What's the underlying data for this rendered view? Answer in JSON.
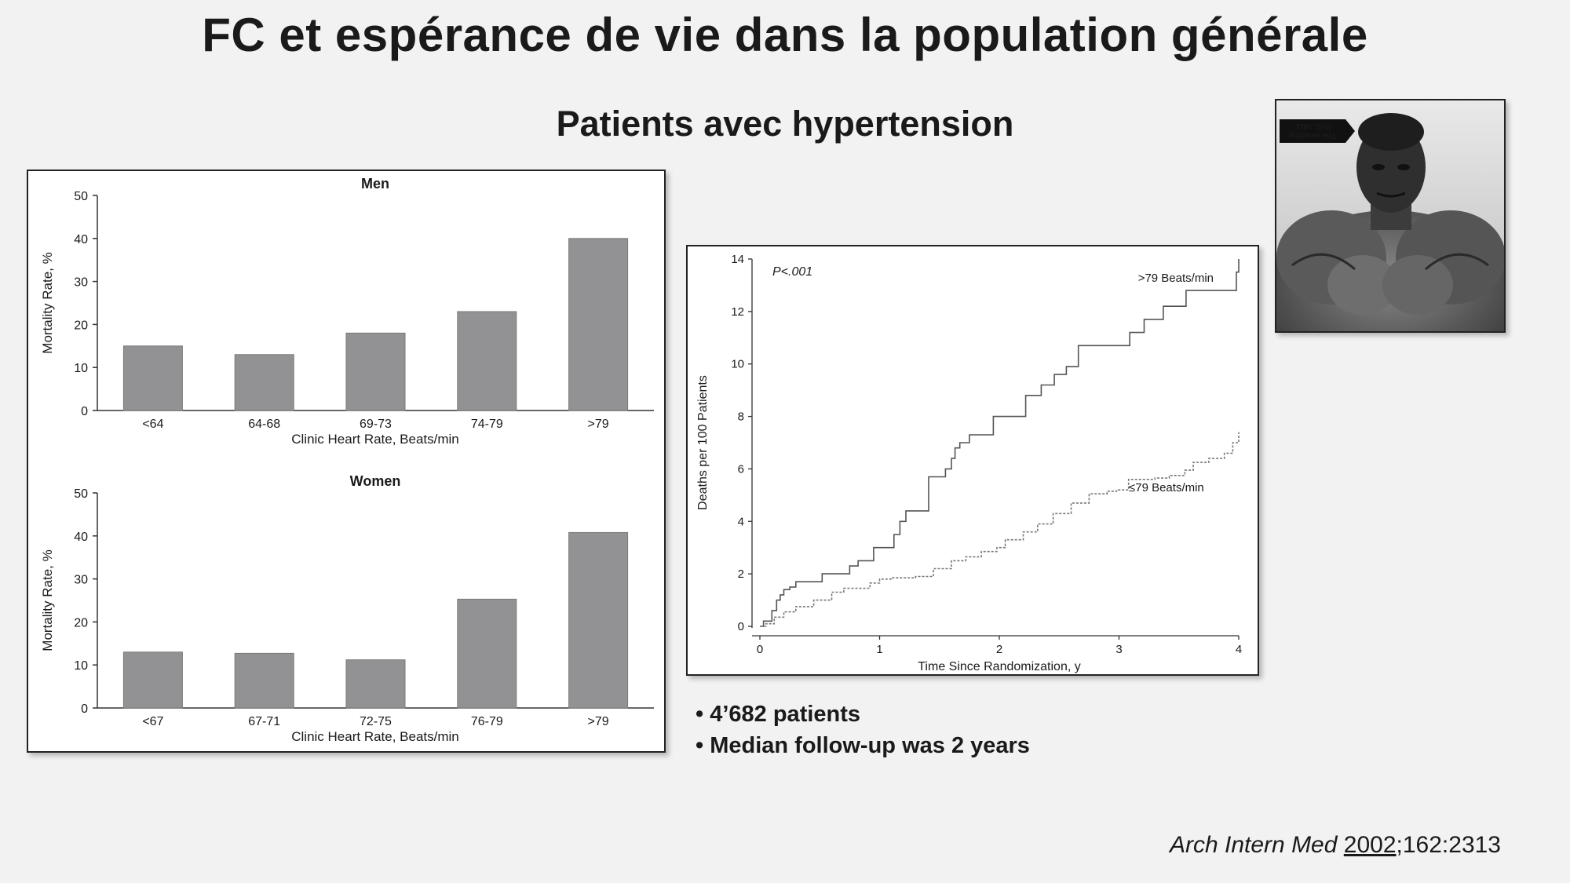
{
  "slide": {
    "title": "FC et espérance de vie dans la population générale",
    "subtitle": "Patients avec hypertension",
    "bullets": [
      "4’682 patients",
      "Median follow-up was 2 years"
    ],
    "citation": {
      "journal": "Arch Intern Med",
      "year": "2002",
      "rest": ";162:2313"
    },
    "photo": {
      "caption_line1": "The amazing",
      "caption_line2": "PHIL HILL"
    }
  },
  "colors": {
    "bar_fill": "#929294",
    "axis": "#333333",
    "background": "#f2f2f2"
  },
  "chart_data": [
    {
      "type": "bar",
      "title": "Men",
      "categories": [
        "<64",
        "64-68",
        "69-73",
        "74-79",
        ">79"
      ],
      "values": [
        15,
        13,
        18,
        23,
        40
      ],
      "xlabel": "Clinic Heart Rate, Beats/min",
      "ylabel": "Mortality Rate, %",
      "ylim": [
        0,
        50
      ],
      "yticks": [
        0,
        10,
        20,
        30,
        40,
        50
      ]
    },
    {
      "type": "bar",
      "title": "Women",
      "categories": [
        "<67",
        "67-71",
        "72-75",
        "76-79",
        ">79"
      ],
      "values": [
        13,
        12.7,
        11.2,
        25.3,
        40.8
      ],
      "xlabel": "Clinic Heart Rate, Beats/min",
      "ylabel": "Mortality Rate, %",
      "ylim": [
        0,
        50
      ],
      "yticks": [
        0,
        10,
        20,
        30,
        40,
        50
      ]
    },
    {
      "type": "line",
      "step": true,
      "annotation": "P<.001",
      "xlabel": "Time Since Randomization, y",
      "ylabel": "Deaths per 100 Patients",
      "xlim": [
        0,
        4
      ],
      "ylim": [
        0,
        14
      ],
      "xticks": [
        0,
        1,
        2,
        3,
        4
      ],
      "yticks": [
        0,
        2,
        4,
        6,
        8,
        10,
        12,
        14
      ],
      "series": [
        {
          "name": ">79 Beats/min",
          "style": "solid",
          "x": [
            0,
            0.03,
            0.1,
            0.14,
            0.17,
            0.2,
            0.25,
            0.3,
            0.4,
            0.52,
            0.62,
            0.75,
            0.82,
            0.95,
            1.12,
            1.17,
            1.22,
            1.41,
            1.55,
            1.6,
            1.63,
            1.67,
            1.75,
            1.95,
            2.22,
            2.35,
            2.46,
            2.56,
            2.66,
            2.73,
            2.95,
            3.09,
            3.21,
            3.37,
            3.56,
            3.78,
            3.98,
            4.0
          ],
          "y": [
            0,
            0.2,
            0.6,
            1.0,
            1.2,
            1.4,
            1.5,
            1.7,
            1.7,
            2.0,
            2.0,
            2.3,
            2.5,
            3.0,
            3.5,
            4.0,
            4.4,
            5.7,
            6.0,
            6.4,
            6.8,
            7.0,
            7.3,
            8.0,
            8.8,
            9.2,
            9.6,
            9.9,
            10.7,
            10.7,
            10.7,
            11.2,
            11.7,
            12.2,
            12.8,
            12.8,
            13.5,
            14.0
          ]
        },
        {
          "name": "≤79 Beats/min",
          "style": "dashed",
          "x": [
            0,
            0.05,
            0.12,
            0.2,
            0.3,
            0.45,
            0.6,
            0.7,
            0.8,
            0.92,
            1.0,
            1.1,
            1.3,
            1.45,
            1.6,
            1.72,
            1.85,
            1.98,
            2.05,
            2.2,
            2.32,
            2.45,
            2.6,
            2.75,
            2.9,
            2.98,
            3.08,
            3.3,
            3.42,
            3.55,
            3.62,
            3.75,
            3.88,
            3.95,
            4.0
          ],
          "y": [
            0,
            0.1,
            0.35,
            0.55,
            0.75,
            1.0,
            1.3,
            1.45,
            1.45,
            1.65,
            1.8,
            1.85,
            1.9,
            2.2,
            2.5,
            2.65,
            2.85,
            3.0,
            3.3,
            3.6,
            3.9,
            4.3,
            4.7,
            5.05,
            5.15,
            5.2,
            5.6,
            5.65,
            5.75,
            5.95,
            6.25,
            6.4,
            6.6,
            7.0,
            7.4
          ]
        }
      ]
    }
  ]
}
